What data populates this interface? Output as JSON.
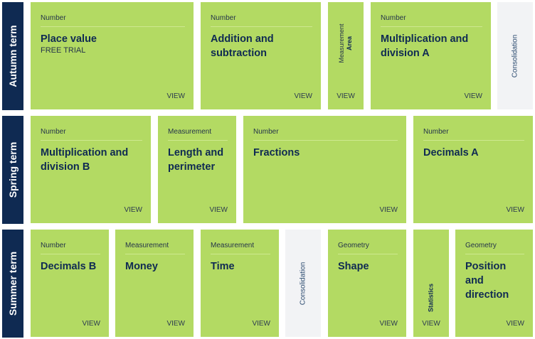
{
  "terms": [
    {
      "label": "Autumn term"
    },
    {
      "label": "Spring term"
    },
    {
      "label": "Summer term"
    }
  ],
  "view_label": "VIEW",
  "autumn": {
    "place_value": {
      "category": "Number",
      "title": "Place value",
      "sub": "FREE TRIAL"
    },
    "add_sub": {
      "category": "Number",
      "title": "Addition and subtraction"
    },
    "area": {
      "category": "Measurement",
      "title": "Area"
    },
    "mult_div_a": {
      "category": "Number",
      "title": "Multiplication and division A"
    },
    "consolidation": "Consolidation"
  },
  "spring": {
    "mult_div_b": {
      "category": "Number",
      "title": "Multiplication and division B"
    },
    "length": {
      "category": "Measurement",
      "title": "Length and perimeter"
    },
    "fractions": {
      "category": "Number",
      "title": "Fractions"
    },
    "decimals_a": {
      "category": "Number",
      "title": "Decimals A"
    }
  },
  "summer": {
    "decimals_b": {
      "category": "Number",
      "title": "Decimals B"
    },
    "money": {
      "category": "Measurement",
      "title": "Money"
    },
    "time": {
      "category": "Measurement",
      "title": "Time"
    },
    "consolidation": "Consolidation",
    "shape": {
      "category": "Geometry",
      "title": "Shape"
    },
    "statistics": {
      "title": "Statistics"
    },
    "position": {
      "category": "Geometry",
      "title": "Position and direction"
    }
  }
}
